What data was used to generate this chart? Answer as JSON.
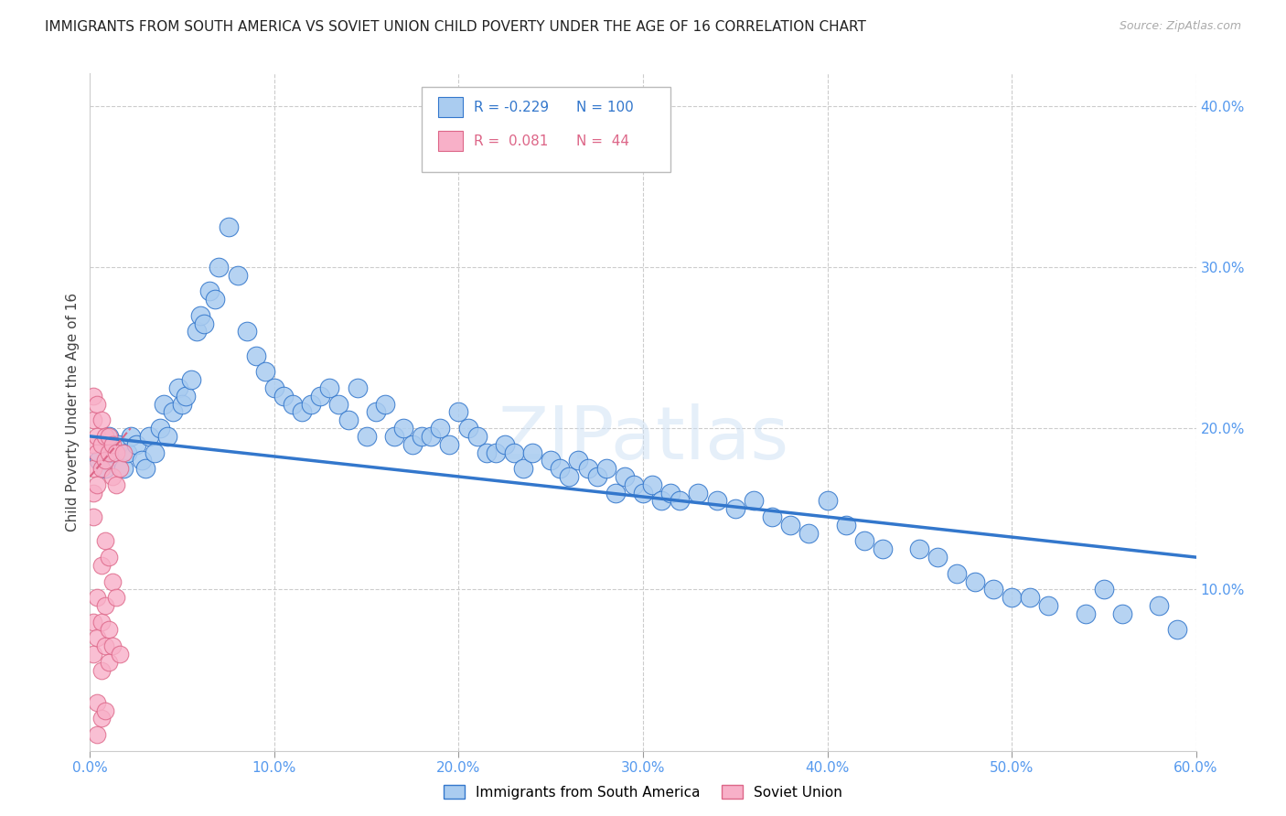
{
  "title": "IMMIGRANTS FROM SOUTH AMERICA VS SOVIET UNION CHILD POVERTY UNDER THE AGE OF 16 CORRELATION CHART",
  "source": "Source: ZipAtlas.com",
  "ylabel": "Child Poverty Under the Age of 16",
  "xlim": [
    0.0,
    0.6
  ],
  "ylim": [
    0.0,
    0.42
  ],
  "xticks": [
    0.0,
    0.1,
    0.2,
    0.3,
    0.4,
    0.5,
    0.6
  ],
  "yticks_right": [
    0.1,
    0.2,
    0.3,
    0.4
  ],
  "blue_color": "#aaccf0",
  "pink_color": "#f8b0c8",
  "trend_blue": "#3377cc",
  "trend_pink": "#dd6688",
  "legend_R1": "-0.229",
  "legend_N1": "100",
  "legend_R2": "0.081",
  "legend_N2": "44",
  "label1": "Immigrants from South America",
  "label2": "Soviet Union",
  "watermark": "ZIPatlas",
  "blue_x": [
    0.005,
    0.008,
    0.01,
    0.012,
    0.015,
    0.018,
    0.02,
    0.022,
    0.025,
    0.028,
    0.03,
    0.032,
    0.035,
    0.038,
    0.04,
    0.042,
    0.045,
    0.048,
    0.05,
    0.052,
    0.055,
    0.058,
    0.06,
    0.062,
    0.065,
    0.068,
    0.07,
    0.075,
    0.08,
    0.085,
    0.09,
    0.095,
    0.1,
    0.105,
    0.11,
    0.115,
    0.12,
    0.125,
    0.13,
    0.135,
    0.14,
    0.145,
    0.15,
    0.155,
    0.16,
    0.165,
    0.17,
    0.175,
    0.18,
    0.185,
    0.19,
    0.195,
    0.2,
    0.205,
    0.21,
    0.215,
    0.22,
    0.225,
    0.23,
    0.235,
    0.24,
    0.25,
    0.255,
    0.26,
    0.265,
    0.27,
    0.275,
    0.28,
    0.285,
    0.29,
    0.295,
    0.3,
    0.305,
    0.31,
    0.315,
    0.32,
    0.33,
    0.34,
    0.35,
    0.36,
    0.37,
    0.38,
    0.39,
    0.4,
    0.41,
    0.42,
    0.43,
    0.45,
    0.46,
    0.47,
    0.48,
    0.49,
    0.5,
    0.51,
    0.52,
    0.54,
    0.55,
    0.56,
    0.58,
    0.59
  ],
  "blue_y": [
    0.18,
    0.175,
    0.195,
    0.185,
    0.19,
    0.175,
    0.185,
    0.195,
    0.19,
    0.18,
    0.175,
    0.195,
    0.185,
    0.2,
    0.215,
    0.195,
    0.21,
    0.225,
    0.215,
    0.22,
    0.23,
    0.26,
    0.27,
    0.265,
    0.285,
    0.28,
    0.3,
    0.325,
    0.295,
    0.26,
    0.245,
    0.235,
    0.225,
    0.22,
    0.215,
    0.21,
    0.215,
    0.22,
    0.225,
    0.215,
    0.205,
    0.225,
    0.195,
    0.21,
    0.215,
    0.195,
    0.2,
    0.19,
    0.195,
    0.195,
    0.2,
    0.19,
    0.21,
    0.2,
    0.195,
    0.185,
    0.185,
    0.19,
    0.185,
    0.175,
    0.185,
    0.18,
    0.175,
    0.17,
    0.18,
    0.175,
    0.17,
    0.175,
    0.16,
    0.17,
    0.165,
    0.16,
    0.165,
    0.155,
    0.16,
    0.155,
    0.16,
    0.155,
    0.15,
    0.155,
    0.145,
    0.14,
    0.135,
    0.155,
    0.14,
    0.13,
    0.125,
    0.125,
    0.12,
    0.11,
    0.105,
    0.1,
    0.095,
    0.095,
    0.09,
    0.085,
    0.1,
    0.085,
    0.09,
    0.075
  ],
  "pink_x": [
    0.002,
    0.002,
    0.002,
    0.002,
    0.002,
    0.002,
    0.002,
    0.002,
    0.004,
    0.004,
    0.004,
    0.004,
    0.004,
    0.004,
    0.004,
    0.004,
    0.006,
    0.006,
    0.006,
    0.006,
    0.006,
    0.006,
    0.006,
    0.008,
    0.008,
    0.008,
    0.008,
    0.008,
    0.008,
    0.01,
    0.01,
    0.01,
    0.01,
    0.01,
    0.012,
    0.012,
    0.012,
    0.012,
    0.014,
    0.014,
    0.014,
    0.016,
    0.016,
    0.018
  ],
  "pink_y": [
    0.22,
    0.205,
    0.19,
    0.175,
    0.16,
    0.145,
    0.08,
    0.06,
    0.215,
    0.195,
    0.185,
    0.165,
    0.095,
    0.07,
    0.03,
    0.01,
    0.205,
    0.19,
    0.175,
    0.115,
    0.08,
    0.05,
    0.02,
    0.195,
    0.18,
    0.13,
    0.09,
    0.065,
    0.025,
    0.195,
    0.185,
    0.12,
    0.075,
    0.055,
    0.19,
    0.17,
    0.105,
    0.065,
    0.185,
    0.165,
    0.095,
    0.175,
    0.06,
    0.185
  ],
  "blue_trend_x": [
    0.0,
    0.6
  ],
  "blue_trend_y": [
    0.195,
    0.12
  ],
  "pink_trend_x": [
    0.0,
    0.022
  ],
  "pink_trend_y": [
    0.17,
    0.2
  ],
  "axis_color": "#5599ee",
  "background_color": "#ffffff",
  "grid_color": "#cccccc",
  "title_fontsize": 11
}
